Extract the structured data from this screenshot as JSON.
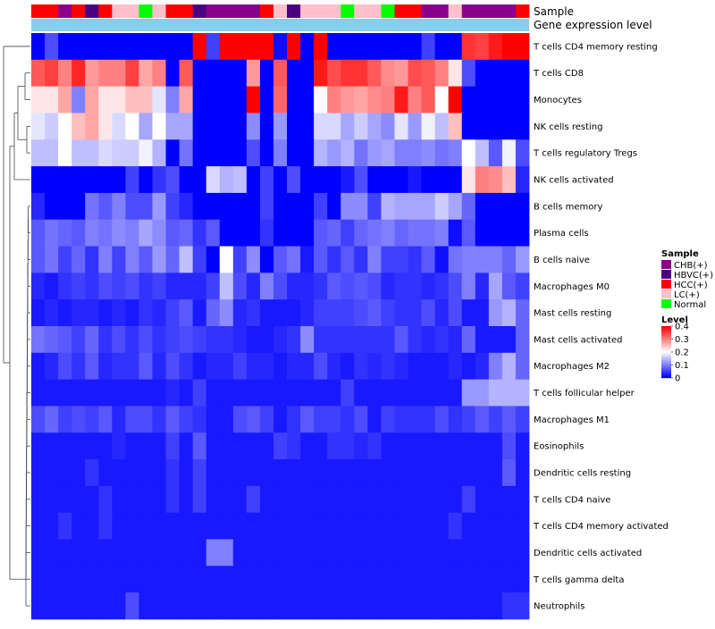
{
  "chart_data": {
    "type": "heatmap",
    "title": "",
    "annotation_tracks": [
      {
        "key": "sample",
        "label": "Sample"
      },
      {
        "key": "level_bar",
        "label": "Gene expression level"
      }
    ],
    "sample_categories": [
      "CHB(+)",
      "HBVC(+)",
      "HCC(+)",
      "LC(+)",
      "Normal"
    ],
    "sample_colors": {
      "CHB(+)": "#8b008b",
      "HBVC(+)": "#4b0082",
      "HCC(+)": "#ff0000",
      "LC(+)": "#ffc0cb",
      "Normal": "#00ff00"
    },
    "expression_bar_color": "#87ceeb",
    "sample_annotation": [
      "HCC(+)",
      "HCC(+)",
      "CHB(+)",
      "HCC(+)",
      "HBVC(+)",
      "HCC(+)",
      "LC(+)",
      "LC(+)",
      "Normal",
      "LC(+)",
      "HCC(+)",
      "HCC(+)",
      "HBVC(+)",
      "CHB(+)",
      "CHB(+)",
      "CHB(+)",
      "CHB(+)",
      "HCC(+)",
      "LC(+)",
      "HBVC(+)",
      "LC(+)",
      "LC(+)",
      "LC(+)",
      "Normal",
      "LC(+)",
      "LC(+)",
      "Normal",
      "HCC(+)",
      "HCC(+)",
      "CHB(+)",
      "CHB(+)",
      "LC(+)",
      "CHB(+)",
      "CHB(+)",
      "CHB(+)",
      "CHB(+)",
      "HCC(+)"
    ],
    "rows": [
      "T cells CD4 memory resting",
      "T cells CD8",
      "Monocytes",
      "NK cells resting",
      "T cells regulatory  Tregs",
      "NK cells activated",
      "B cells memory",
      "Plasma cells",
      "B cells naive",
      "Macrophages M0",
      "Mast cells resting",
      "Mast cells activated",
      "Macrophages M2",
      "T cells follicular helper",
      "Macrophages M1",
      "Eosinophils",
      "Dendritic cells resting",
      "T cells CD4 naive",
      "T cells CD4 memory activated",
      "Dendritic cells activated",
      "T cells gamma delta",
      "Neutrophils"
    ],
    "values": [
      [
        0,
        0.06,
        0,
        0,
        0,
        0,
        0,
        0,
        0,
        0,
        0,
        0,
        0.4,
        0.05,
        0.4,
        0.4,
        0.4,
        0.4,
        0.01,
        0.4,
        0,
        0.4,
        0,
        0,
        0,
        0,
        0,
        0,
        0,
        0.05,
        0,
        0,
        0.36,
        0.35,
        0.38,
        0.4,
        0.4
      ],
      [
        0.33,
        0.35,
        0.3,
        0.37,
        0.28,
        0.3,
        0.3,
        0.35,
        0.27,
        0.3,
        0,
        0.33,
        0,
        0,
        0,
        0,
        0.28,
        0,
        0.33,
        0,
        0,
        0.38,
        0.34,
        0.36,
        0.36,
        0.33,
        0.29,
        0.28,
        0.34,
        0.33,
        0.3,
        0.22,
        0.06,
        0,
        0,
        0,
        0
      ],
      [
        0.22,
        0.22,
        0.27,
        0.1,
        0.27,
        0.22,
        0.22,
        0.25,
        0.25,
        0.18,
        0.1,
        0.27,
        0,
        0,
        0,
        0,
        0.4,
        0,
        0.32,
        0,
        0,
        0.2,
        0.3,
        0.28,
        0.27,
        0.29,
        0.3,
        0.38,
        0.3,
        0.33,
        0.2,
        0.4,
        0,
        0,
        0,
        0,
        0
      ],
      [
        0.18,
        0.16,
        0.2,
        0.25,
        0.27,
        0.22,
        0.17,
        0.2,
        0.13,
        0.2,
        0.13,
        0.13,
        0,
        0,
        0,
        0,
        0.11,
        0,
        0.12,
        0,
        0,
        0.17,
        0.17,
        0.13,
        0.16,
        0.13,
        0.11,
        0.18,
        0.12,
        0.19,
        0.15,
        0.25,
        0,
        0,
        0,
        0,
        0
      ],
      [
        0.15,
        0.15,
        0.2,
        0.15,
        0.15,
        0.17,
        0.16,
        0.16,
        0.19,
        0.14,
        0,
        0.09,
        0,
        0,
        0,
        0,
        0.06,
        0,
        0.1,
        0,
        0,
        0.14,
        0.12,
        0.14,
        0.09,
        0.12,
        0.13,
        0.1,
        0.1,
        0.11,
        0.09,
        0.1,
        0.2,
        0.15,
        0.07,
        0.19,
        0.06
      ],
      [
        0,
        0,
        0,
        0,
        0,
        0,
        0,
        0.05,
        0,
        0.04,
        0.06,
        0,
        0,
        0.17,
        0.14,
        0.15,
        0,
        0.05,
        0,
        0.06,
        0,
        0,
        0,
        0.02,
        0.06,
        0,
        0,
        0,
        0.02,
        0,
        0,
        0,
        0.22,
        0.3,
        0.29,
        0.25,
        0.03
      ],
      [
        0.03,
        0,
        0,
        0,
        0.09,
        0.07,
        0.1,
        0.06,
        0.06,
        0.12,
        0.05,
        0.03,
        0,
        0,
        0,
        0,
        0,
        0.05,
        0,
        0,
        0,
        0.05,
        0,
        0.11,
        0.11,
        0.05,
        0.14,
        0.13,
        0.13,
        0.13,
        0.16,
        0.13,
        0.08,
        0,
        0,
        0,
        0
      ],
      [
        0.07,
        0.09,
        0.08,
        0.07,
        0.1,
        0.09,
        0.11,
        0.1,
        0.13,
        0.11,
        0.07,
        0.08,
        0.04,
        0.07,
        0,
        0,
        0,
        0.04,
        0,
        0,
        0,
        0.07,
        0.08,
        0.05,
        0.08,
        0.09,
        0.1,
        0.08,
        0.09,
        0.09,
        0.1,
        0.01,
        0.07,
        0,
        0,
        0,
        0
      ],
      [
        0.07,
        0.09,
        0.05,
        0.08,
        0.04,
        0.1,
        0.05,
        0.1,
        0.07,
        0.12,
        0.08,
        0.15,
        0.05,
        0,
        0.2,
        0.05,
        0.11,
        0,
        0.07,
        0.09,
        0.02,
        0.07,
        0.04,
        0.07,
        0.04,
        0.1,
        0.05,
        0.05,
        0.04,
        0.07,
        0.01,
        0.09,
        0.1,
        0.1,
        0.1,
        0.08,
        0.12
      ],
      [
        0.03,
        0.02,
        0.04,
        0.05,
        0.04,
        0.06,
        0.05,
        0.06,
        0.04,
        0.05,
        0.03,
        0.03,
        0.03,
        0.05,
        0.15,
        0.06,
        0.03,
        0.1,
        0.06,
        0.03,
        0.03,
        0.04,
        0.07,
        0.06,
        0.07,
        0.06,
        0.03,
        0.04,
        0.04,
        0.03,
        0.04,
        0.06,
        0.1,
        0.03,
        0.13,
        0.07,
        0.05
      ],
      [
        0.02,
        0.03,
        0.02,
        0.03,
        0.03,
        0.02,
        0.03,
        0.02,
        0.04,
        0.03,
        0.05,
        0.07,
        0.02,
        0.08,
        0.11,
        0.03,
        0.04,
        0.02,
        0.02,
        0.02,
        0.03,
        0.05,
        0.05,
        0.05,
        0.06,
        0.07,
        0.05,
        0.04,
        0.04,
        0.06,
        0.03,
        0.06,
        0.02,
        0.02,
        0.12,
        0.14,
        0.08
      ],
      [
        0.09,
        0.08,
        0.07,
        0.05,
        0.08,
        0.04,
        0.06,
        0.04,
        0.06,
        0.04,
        0.05,
        0.06,
        0.05,
        0.04,
        0.04,
        0.03,
        0.02,
        0.02,
        0.03,
        0.04,
        0.11,
        0.04,
        0.04,
        0.04,
        0.04,
        0.04,
        0.04,
        0.07,
        0.04,
        0.03,
        0.04,
        0.03,
        0.08,
        0.02,
        0.02,
        0.02,
        0.08
      ],
      [
        0.02,
        0.03,
        0.06,
        0.04,
        0.07,
        0.03,
        0.04,
        0.04,
        0.07,
        0.03,
        0.06,
        0.04,
        0.02,
        0.03,
        0.03,
        0.05,
        0.03,
        0.03,
        0.02,
        0.03,
        0.03,
        0.06,
        0.03,
        0.02,
        0.04,
        0.03,
        0.04,
        0.03,
        0.02,
        0.02,
        0.02,
        0.03,
        0.02,
        0.03,
        0.1,
        0.14,
        0.08
      ],
      [
        0.02,
        0.02,
        0.02,
        0.02,
        0.02,
        0.02,
        0.02,
        0.02,
        0.02,
        0.02,
        0.03,
        0.02,
        0.05,
        0.02,
        0.02,
        0.02,
        0.02,
        0.02,
        0.02,
        0.02,
        0.02,
        0.02,
        0.02,
        0.05,
        0.02,
        0.02,
        0.02,
        0.02,
        0.02,
        0.02,
        0.02,
        0.02,
        0.12,
        0.12,
        0.14,
        0.14,
        0.14
      ],
      [
        0.06,
        0.08,
        0.05,
        0.06,
        0.05,
        0.07,
        0.03,
        0.06,
        0.06,
        0.04,
        0.07,
        0.05,
        0.04,
        0.02,
        0.02,
        0.06,
        0.07,
        0.05,
        0.02,
        0.04,
        0.07,
        0.05,
        0.05,
        0.04,
        0.06,
        0.02,
        0.05,
        0.04,
        0.04,
        0.04,
        0.06,
        0.04,
        0.05,
        0.07,
        0.05,
        0.07,
        0.05
      ],
      [
        0.02,
        0.02,
        0.02,
        0.02,
        0.02,
        0.02,
        0.03,
        0.02,
        0.02,
        0.02,
        0.05,
        0.02,
        0.07,
        0.02,
        0.02,
        0.02,
        0.02,
        0.02,
        0.05,
        0.04,
        0.02,
        0.02,
        0.04,
        0.04,
        0.03,
        0.04,
        0.02,
        0.02,
        0.02,
        0.02,
        0.02,
        0.02,
        0.02,
        0.02,
        0.02,
        0.06,
        0.02
      ],
      [
        0.02,
        0.02,
        0.02,
        0.02,
        0.04,
        0.02,
        0.02,
        0.02,
        0.02,
        0.02,
        0.04,
        0.02,
        0.05,
        0.02,
        0.02,
        0.02,
        0.02,
        0.02,
        0.02,
        0.02,
        0.02,
        0.02,
        0.02,
        0.02,
        0.02,
        0.02,
        0.02,
        0.02,
        0.02,
        0.02,
        0.02,
        0.02,
        0.02,
        0.02,
        0.02,
        0.07,
        0.02
      ],
      [
        0.02,
        0.02,
        0.02,
        0.02,
        0.02,
        0.04,
        0.02,
        0.02,
        0.02,
        0.02,
        0.04,
        0.02,
        0.05,
        0.02,
        0.02,
        0.02,
        0.05,
        0.02,
        0.02,
        0.02,
        0.02,
        0.02,
        0.02,
        0.02,
        0.02,
        0.02,
        0.02,
        0.02,
        0.02,
        0.02,
        0.02,
        0.02,
        0.05,
        0.02,
        0.02,
        0.02,
        0.02
      ],
      [
        0.02,
        0.02,
        0.04,
        0.02,
        0.02,
        0.04,
        0.02,
        0.02,
        0.02,
        0.02,
        0.02,
        0.02,
        0.02,
        0.02,
        0.02,
        0.02,
        0.02,
        0.02,
        0.02,
        0.02,
        0.02,
        0.02,
        0.02,
        0.02,
        0.02,
        0.02,
        0.02,
        0.02,
        0.02,
        0.02,
        0.02,
        0.04,
        0.02,
        0.02,
        0.02,
        0.02,
        0.02
      ],
      [
        0.02,
        0.02,
        0.02,
        0.02,
        0.02,
        0.02,
        0.02,
        0.02,
        0.02,
        0.02,
        0.02,
        0.02,
        0.02,
        0.1,
        0.1,
        0.02,
        0.02,
        0.02,
        0.02,
        0.02,
        0.02,
        0.02,
        0.02,
        0.02,
        0.02,
        0.02,
        0.02,
        0.02,
        0.02,
        0.02,
        0.02,
        0.02,
        0.02,
        0.02,
        0.02,
        0.02,
        0.02
      ],
      [
        0.02,
        0.02,
        0.02,
        0.02,
        0.02,
        0.02,
        0.02,
        0.02,
        0.02,
        0.02,
        0.02,
        0.02,
        0.02,
        0.02,
        0.02,
        0.02,
        0.02,
        0.02,
        0.02,
        0.02,
        0.02,
        0.02,
        0.02,
        0.02,
        0.02,
        0.02,
        0.02,
        0.02,
        0.02,
        0.02,
        0.02,
        0.02,
        0.02,
        0.02,
        0.02,
        0.02,
        0.02
      ],
      [
        0.02,
        0.02,
        0.02,
        0.02,
        0.02,
        0.02,
        0.02,
        0.06,
        0.02,
        0.02,
        0.02,
        0.02,
        0.02,
        0.02,
        0.02,
        0.02,
        0.02,
        0.02,
        0.02,
        0.02,
        0.02,
        0.02,
        0.02,
        0.02,
        0.02,
        0.02,
        0.02,
        0.02,
        0.02,
        0.02,
        0.02,
        0.02,
        0.02,
        0.02,
        0.02,
        0.04,
        0.04
      ]
    ],
    "color_scale": {
      "min": 0,
      "mid": 0.2,
      "max": 0.4,
      "colors": [
        "#0000ff",
        "#ffffff",
        "#ff0000"
      ]
    },
    "legend": {
      "sample_title": "Sample",
      "level_title": "Level",
      "level_ticks": [
        "0.4",
        "0.3",
        "0.2",
        "0.1",
        "0"
      ],
      "level_tick_values": [
        0.4,
        0.3,
        0.2,
        0.1,
        0
      ],
      "placement": "right"
    }
  }
}
